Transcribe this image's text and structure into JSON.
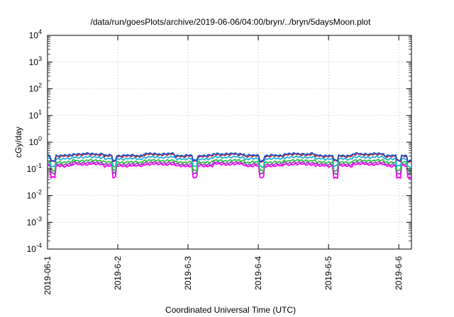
{
  "chart_data": {
    "type": "line",
    "title": "/data/run/goesPlots/archive/2019-06-06/04:00/bryn/../bryn/5daysMoon.plot",
    "xlabel": "Coordinated Universal Time (UTC)",
    "ylabel": "cGy/day",
    "yscale": "log",
    "ylim": [
      0.0001,
      10000
    ],
    "y_ticks": [
      {
        "value": 0.0001,
        "base": "10",
        "exp": "-4"
      },
      {
        "value": 0.001,
        "base": "10",
        "exp": "-3"
      },
      {
        "value": 0.01,
        "base": "10",
        "exp": "-2"
      },
      {
        "value": 0.1,
        "base": "10",
        "exp": "-1"
      },
      {
        "value": 1,
        "base": "10",
        "exp": "0"
      },
      {
        "value": 10,
        "base": "10",
        "exp": "1"
      },
      {
        "value": 100,
        "base": "10",
        "exp": "2"
      },
      {
        "value": 1000,
        "base": "10",
        "exp": "3"
      },
      {
        "value": 10000,
        "base": "10",
        "exp": "4"
      }
    ],
    "x_range_days": [
      0,
      5.18
    ],
    "x_ticks": [
      {
        "day": 0,
        "label": "2019-06-1"
      },
      {
        "day": 1,
        "label": "2019-6-2"
      },
      {
        "day": 2,
        "label": "2019-6-3"
      },
      {
        "day": 3,
        "label": "2019-6-4"
      },
      {
        "day": 4,
        "label": "2019-6-5"
      },
      {
        "day": 5,
        "label": "2019-6-6"
      }
    ],
    "grid": true,
    "legend": "none",
    "series": [
      {
        "color": "#2255cc",
        "base": 0.32,
        "dip": 0.45
      },
      {
        "color": "#d42020",
        "base": 0.3,
        "dip": 0.42
      },
      {
        "color": "#20b0d8",
        "base": 0.24,
        "dip": 0.6
      },
      {
        "color": "#30c040",
        "base": 0.18,
        "dip": 0.65
      },
      {
        "color": "#a040c0",
        "base": 0.15,
        "dip": 0.7
      },
      {
        "color": "#ff00ff",
        "base": 0.13,
        "dip": 0.8
      }
    ],
    "dips_days": [
      0.08,
      0.95,
      2.1,
      3.05,
      4.1,
      5.0,
      5.15
    ]
  }
}
